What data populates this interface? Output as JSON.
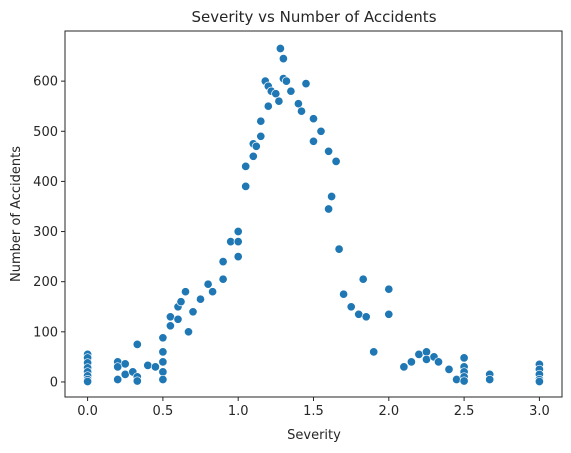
{
  "chart_data": {
    "type": "scatter",
    "title": "Severity vs Number of Accidents",
    "xlabel": "Severity",
    "ylabel": "Number of Accidents",
    "xlim": [
      -0.15,
      3.15
    ],
    "ylim": [
      -30,
      700
    ],
    "xticks": [
      0.0,
      0.5,
      1.0,
      1.5,
      2.0,
      2.5,
      3.0
    ],
    "xtick_labels": [
      "0.0",
      "0.5",
      "1.0",
      "1.5",
      "2.0",
      "2.5",
      "3.0"
    ],
    "yticks": [
      0,
      100,
      200,
      300,
      400,
      500,
      600
    ],
    "ytick_labels": [
      "0",
      "100",
      "200",
      "300",
      "400",
      "500",
      "600"
    ],
    "grid": false,
    "marker_color": "#1f77b4",
    "marker_edge_color": "#ffffff",
    "points": [
      [
        0.0,
        55
      ],
      [
        0.0,
        48
      ],
      [
        0.0,
        38
      ],
      [
        0.0,
        28
      ],
      [
        0.0,
        20
      ],
      [
        0.0,
        12
      ],
      [
        0.0,
        5
      ],
      [
        0.0,
        1
      ],
      [
        0.2,
        40
      ],
      [
        0.2,
        30
      ],
      [
        0.2,
        5
      ],
      [
        0.25,
        36
      ],
      [
        0.25,
        15
      ],
      [
        0.3,
        20
      ],
      [
        0.33,
        75
      ],
      [
        0.33,
        10
      ],
      [
        0.33,
        2
      ],
      [
        0.4,
        33
      ],
      [
        0.45,
        30
      ],
      [
        0.5,
        88
      ],
      [
        0.5,
        60
      ],
      [
        0.5,
        40
      ],
      [
        0.5,
        20
      ],
      [
        0.5,
        5
      ],
      [
        0.55,
        112
      ],
      [
        0.55,
        130
      ],
      [
        0.6,
        150
      ],
      [
        0.6,
        125
      ],
      [
        0.62,
        160
      ],
      [
        0.65,
        180
      ],
      [
        0.67,
        100
      ],
      [
        0.7,
        140
      ],
      [
        0.75,
        165
      ],
      [
        0.8,
        195
      ],
      [
        0.83,
        180
      ],
      [
        0.9,
        240
      ],
      [
        0.9,
        205
      ],
      [
        0.95,
        280
      ],
      [
        1.0,
        280
      ],
      [
        1.0,
        300
      ],
      [
        1.0,
        250
      ],
      [
        1.05,
        430
      ],
      [
        1.05,
        390
      ],
      [
        1.1,
        475
      ],
      [
        1.1,
        450
      ],
      [
        1.12,
        470
      ],
      [
        1.15,
        520
      ],
      [
        1.15,
        490
      ],
      [
        1.18,
        600
      ],
      [
        1.2,
        590
      ],
      [
        1.2,
        550
      ],
      [
        1.22,
        580
      ],
      [
        1.25,
        575
      ],
      [
        1.27,
        560
      ],
      [
        1.28,
        665
      ],
      [
        1.3,
        645
      ],
      [
        1.3,
        605
      ],
      [
        1.32,
        600
      ],
      [
        1.35,
        580
      ],
      [
        1.4,
        555
      ],
      [
        1.42,
        540
      ],
      [
        1.45,
        595
      ],
      [
        1.5,
        525
      ],
      [
        1.5,
        480
      ],
      [
        1.55,
        500
      ],
      [
        1.6,
        460
      ],
      [
        1.6,
        345
      ],
      [
        1.62,
        370
      ],
      [
        1.65,
        440
      ],
      [
        1.67,
        265
      ],
      [
        1.7,
        175
      ],
      [
        1.75,
        150
      ],
      [
        1.8,
        135
      ],
      [
        1.83,
        205
      ],
      [
        1.85,
        130
      ],
      [
        1.9,
        60
      ],
      [
        2.0,
        185
      ],
      [
        2.0,
        135
      ],
      [
        2.1,
        30
      ],
      [
        2.15,
        40
      ],
      [
        2.2,
        55
      ],
      [
        2.25,
        60
      ],
      [
        2.25,
        45
      ],
      [
        2.3,
        50
      ],
      [
        2.33,
        40
      ],
      [
        2.4,
        25
      ],
      [
        2.45,
        5
      ],
      [
        2.5,
        48
      ],
      [
        2.5,
        30
      ],
      [
        2.5,
        20
      ],
      [
        2.5,
        10
      ],
      [
        2.5,
        2
      ],
      [
        2.67,
        15
      ],
      [
        2.67,
        5
      ],
      [
        3.0,
        35
      ],
      [
        3.0,
        25
      ],
      [
        3.0,
        15
      ],
      [
        3.0,
        5
      ],
      [
        3.0,
        1
      ]
    ]
  }
}
